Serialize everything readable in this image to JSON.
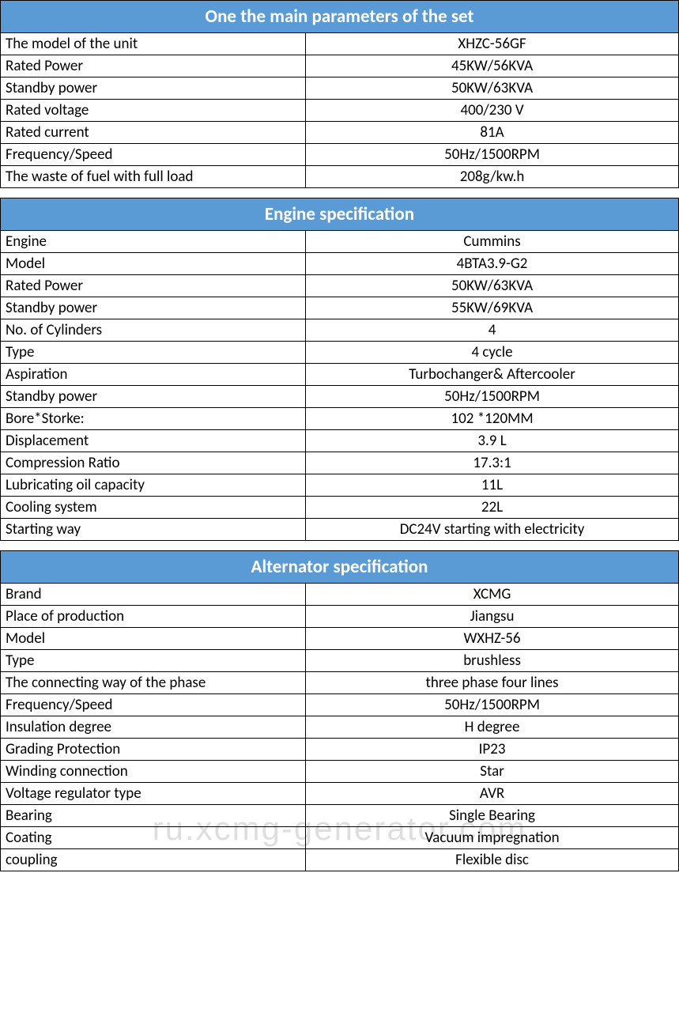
{
  "styling": {
    "header_bg": "#5b9bd5",
    "header_text_color": "#ffffff",
    "header_fontsize": 23,
    "border_color": "#000000",
    "cell_fontsize": 19,
    "cell_text_color": "#000000",
    "background_color": "#ffffff",
    "font_family": "Calibri, Arial, sans-serif",
    "col1_width_pct": 45,
    "col2_width_pct": 55,
    "col1_align": "left",
    "col2_align": "center",
    "watermark_color": "rgba(0,0,0,0.13)",
    "watermark_fontsize": 42
  },
  "watermark": "ru.xcmg-generator.com",
  "sections": [
    {
      "title": "One the main parameters of the set",
      "rows": [
        {
          "label": "The model of the unit",
          "value": "XHZC-56GF"
        },
        {
          "label": "Rated Power",
          "value": "45KW/56KVA"
        },
        {
          "label": "Standby power",
          "value": "50KW/63KVA"
        },
        {
          "label": "Rated voltage",
          "value": "400/230 V"
        },
        {
          "label": "Rated current",
          "value": "81A"
        },
        {
          "label": "Frequency/Speed",
          "value": "50Hz/1500RPM"
        },
        {
          "label": "The waste of fuel with full load",
          "value": "208g/kw.h"
        }
      ]
    },
    {
      "title": "Engine specification",
      "rows": [
        {
          "label": "Engine",
          "value": "Cummins"
        },
        {
          "label": "Model",
          "value": "4BTA3.9-G2"
        },
        {
          "label": "Rated Power",
          "value": "50KW/63KVA"
        },
        {
          "label": "Standby power",
          "value": "55KW/69KVA"
        },
        {
          "label": "No. of Cylinders",
          "value": "4"
        },
        {
          "label": "Type",
          "value": "4 cycle"
        },
        {
          "label": "Aspiration",
          "value": "Turbochanger& Aftercooler"
        },
        {
          "label": "Standby power",
          "value": "50Hz/1500RPM"
        },
        {
          "label": "Bore*Storke:",
          "value": "102 *120MM"
        },
        {
          "label": "Displacement",
          "value": "3.9 L"
        },
        {
          "label": "Compression Ratio",
          "value": "17.3:1"
        },
        {
          "label": "Lubricating oil capacity",
          "value": "11L"
        },
        {
          "label": "Cooling system",
          "value": "22L"
        },
        {
          "label": "Starting way",
          "value": "DC24V starting with electricity"
        }
      ]
    },
    {
      "title": "Alternator specification",
      "rows": [
        {
          "label": "Brand",
          "value": "XCMG"
        },
        {
          "label": "Place of production",
          "value": "Jiangsu"
        },
        {
          "label": "Model",
          "value": "WXHZ-56"
        },
        {
          "label": "Type",
          "value": "brushless"
        },
        {
          "label": "The connecting way of the phase",
          "value": "three phase four lines"
        },
        {
          "label": "Frequency/Speed",
          "value": "50Hz/1500RPM"
        },
        {
          "label": "Insulation degree",
          "value": "H degree"
        },
        {
          "label": "Grading Protection",
          "value": "IP23"
        },
        {
          "label": "Winding connection",
          "value": "Star"
        },
        {
          "label": "Voltage regulator type",
          "value": "AVR"
        },
        {
          "label": "Bearing",
          "value": "Single Bearing"
        },
        {
          "label": "Coating",
          "value": "Vacuum impregnation"
        },
        {
          "label": "coupling",
          "value": "Flexible disc"
        }
      ]
    }
  ]
}
